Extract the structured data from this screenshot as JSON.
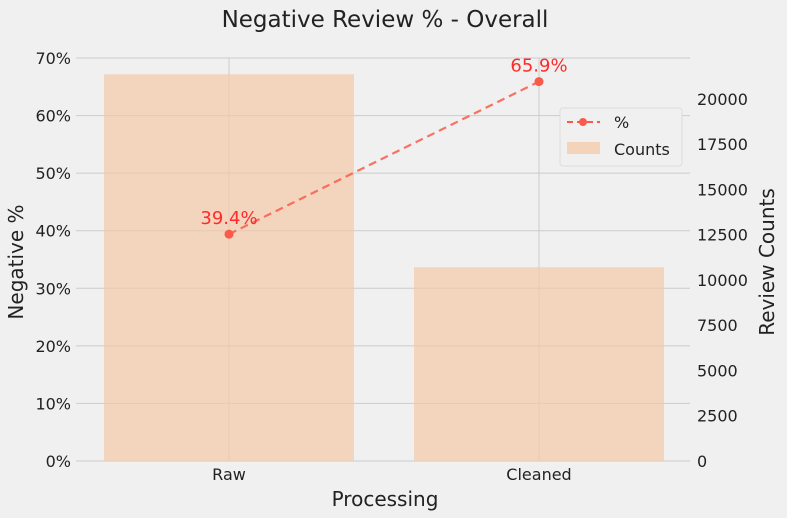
{
  "chart_data": {
    "type": "bar",
    "title": "Negative Review %  - Overall",
    "xlabel": "Processing",
    "ylabel_left": "Negative %",
    "ylabel_right": "Review Counts",
    "categories": [
      "Raw",
      "Cleaned"
    ],
    "series": [
      {
        "name": "Counts",
        "type": "bar",
        "axis": "right",
        "values": [
          21350,
          10700
        ],
        "color": "#f4c9a8"
      },
      {
        "name": "%",
        "type": "line",
        "axis": "left",
        "values": [
          39.4,
          65.9
        ],
        "labels": [
          "39.4%",
          "65.9%"
        ],
        "color": "#fa5a4a",
        "linestyle": "dashed",
        "marker": "circle"
      }
    ],
    "left_axis": {
      "ylim": [
        0,
        70
      ],
      "ticks": [
        0,
        10,
        20,
        30,
        40,
        50,
        60,
        70
      ],
      "tick_labels": [
        "0%",
        "10%",
        "20%",
        "30%",
        "40%",
        "50%",
        "60%",
        "70%"
      ]
    },
    "right_axis": {
      "ylim": [
        0,
        22250
      ],
      "ticks": [
        0,
        2500,
        5000,
        7500,
        10000,
        12500,
        15000,
        17500,
        20000
      ],
      "tick_labels": [
        "0",
        "2500",
        "5000",
        "7500",
        "10000",
        "12500",
        "15000",
        "17500",
        "20000"
      ]
    },
    "legend": {
      "placement": "upper-right",
      "entries": [
        "%",
        "Counts"
      ]
    },
    "grid": true,
    "colors": {
      "background": "#f0f0f0",
      "grid": "#cbcbcb",
      "label_text": "#ff2a2a",
      "text": "#222222"
    }
  }
}
